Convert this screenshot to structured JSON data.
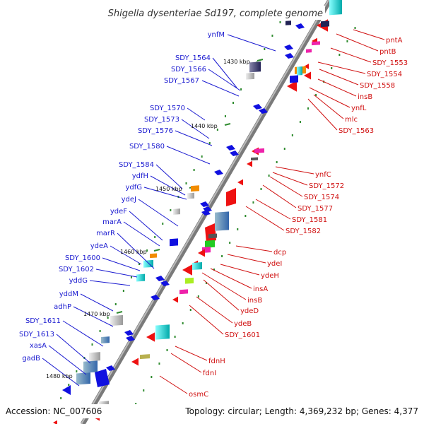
{
  "title": "Shigella dysenteriae Sd197, complete genome",
  "footer": {
    "accession": "Accession: NC_007606",
    "info": "Topology: circular; Length: 4,369,232 bp; Genes: 4,377"
  },
  "colors": {
    "forward_label": "#1a1ad0",
    "reverse_label": "#d01010",
    "backbone": "#888888",
    "tick": "#2e8b2e"
  },
  "kbp_ticks": [
    "1430 kbp",
    "1440 kbp",
    "1450 kbp",
    "1460 kbp",
    "1470 kbp",
    "1480 kbp"
  ],
  "left_labels": [
    "ynfM",
    "SDY_1564",
    "SDY_1566",
    "SDY_1567",
    "SDY_1570",
    "SDY_1573",
    "SDY_1576",
    "SDY_1580",
    "SDY_1584",
    "ydfH",
    "ydfG",
    "ydeJ",
    "ydeF",
    "marA",
    "marR",
    "ydeA",
    "SDY_1600",
    "SDY_1602",
    "yddG",
    "yddM",
    "adhP",
    "SDY_1611",
    "SDY_1613",
    "xasA",
    "gadB"
  ],
  "right_labels": [
    "pntA",
    "pntB",
    "SDY_1553",
    "SDY_1554",
    "SDY_1558",
    "insB",
    "ynfL",
    "mlc",
    "SDY_1563",
    "ynfC",
    "SDY_1572",
    "SDY_1574",
    "SDY_1577",
    "SDY_1581",
    "SDY_1582",
    "dcp",
    "ydeI",
    "ydeH",
    "insA",
    "insB",
    "ydeD",
    "ydeB",
    "SDY_1601",
    "fdnH",
    "fdnI",
    "osmC"
  ]
}
